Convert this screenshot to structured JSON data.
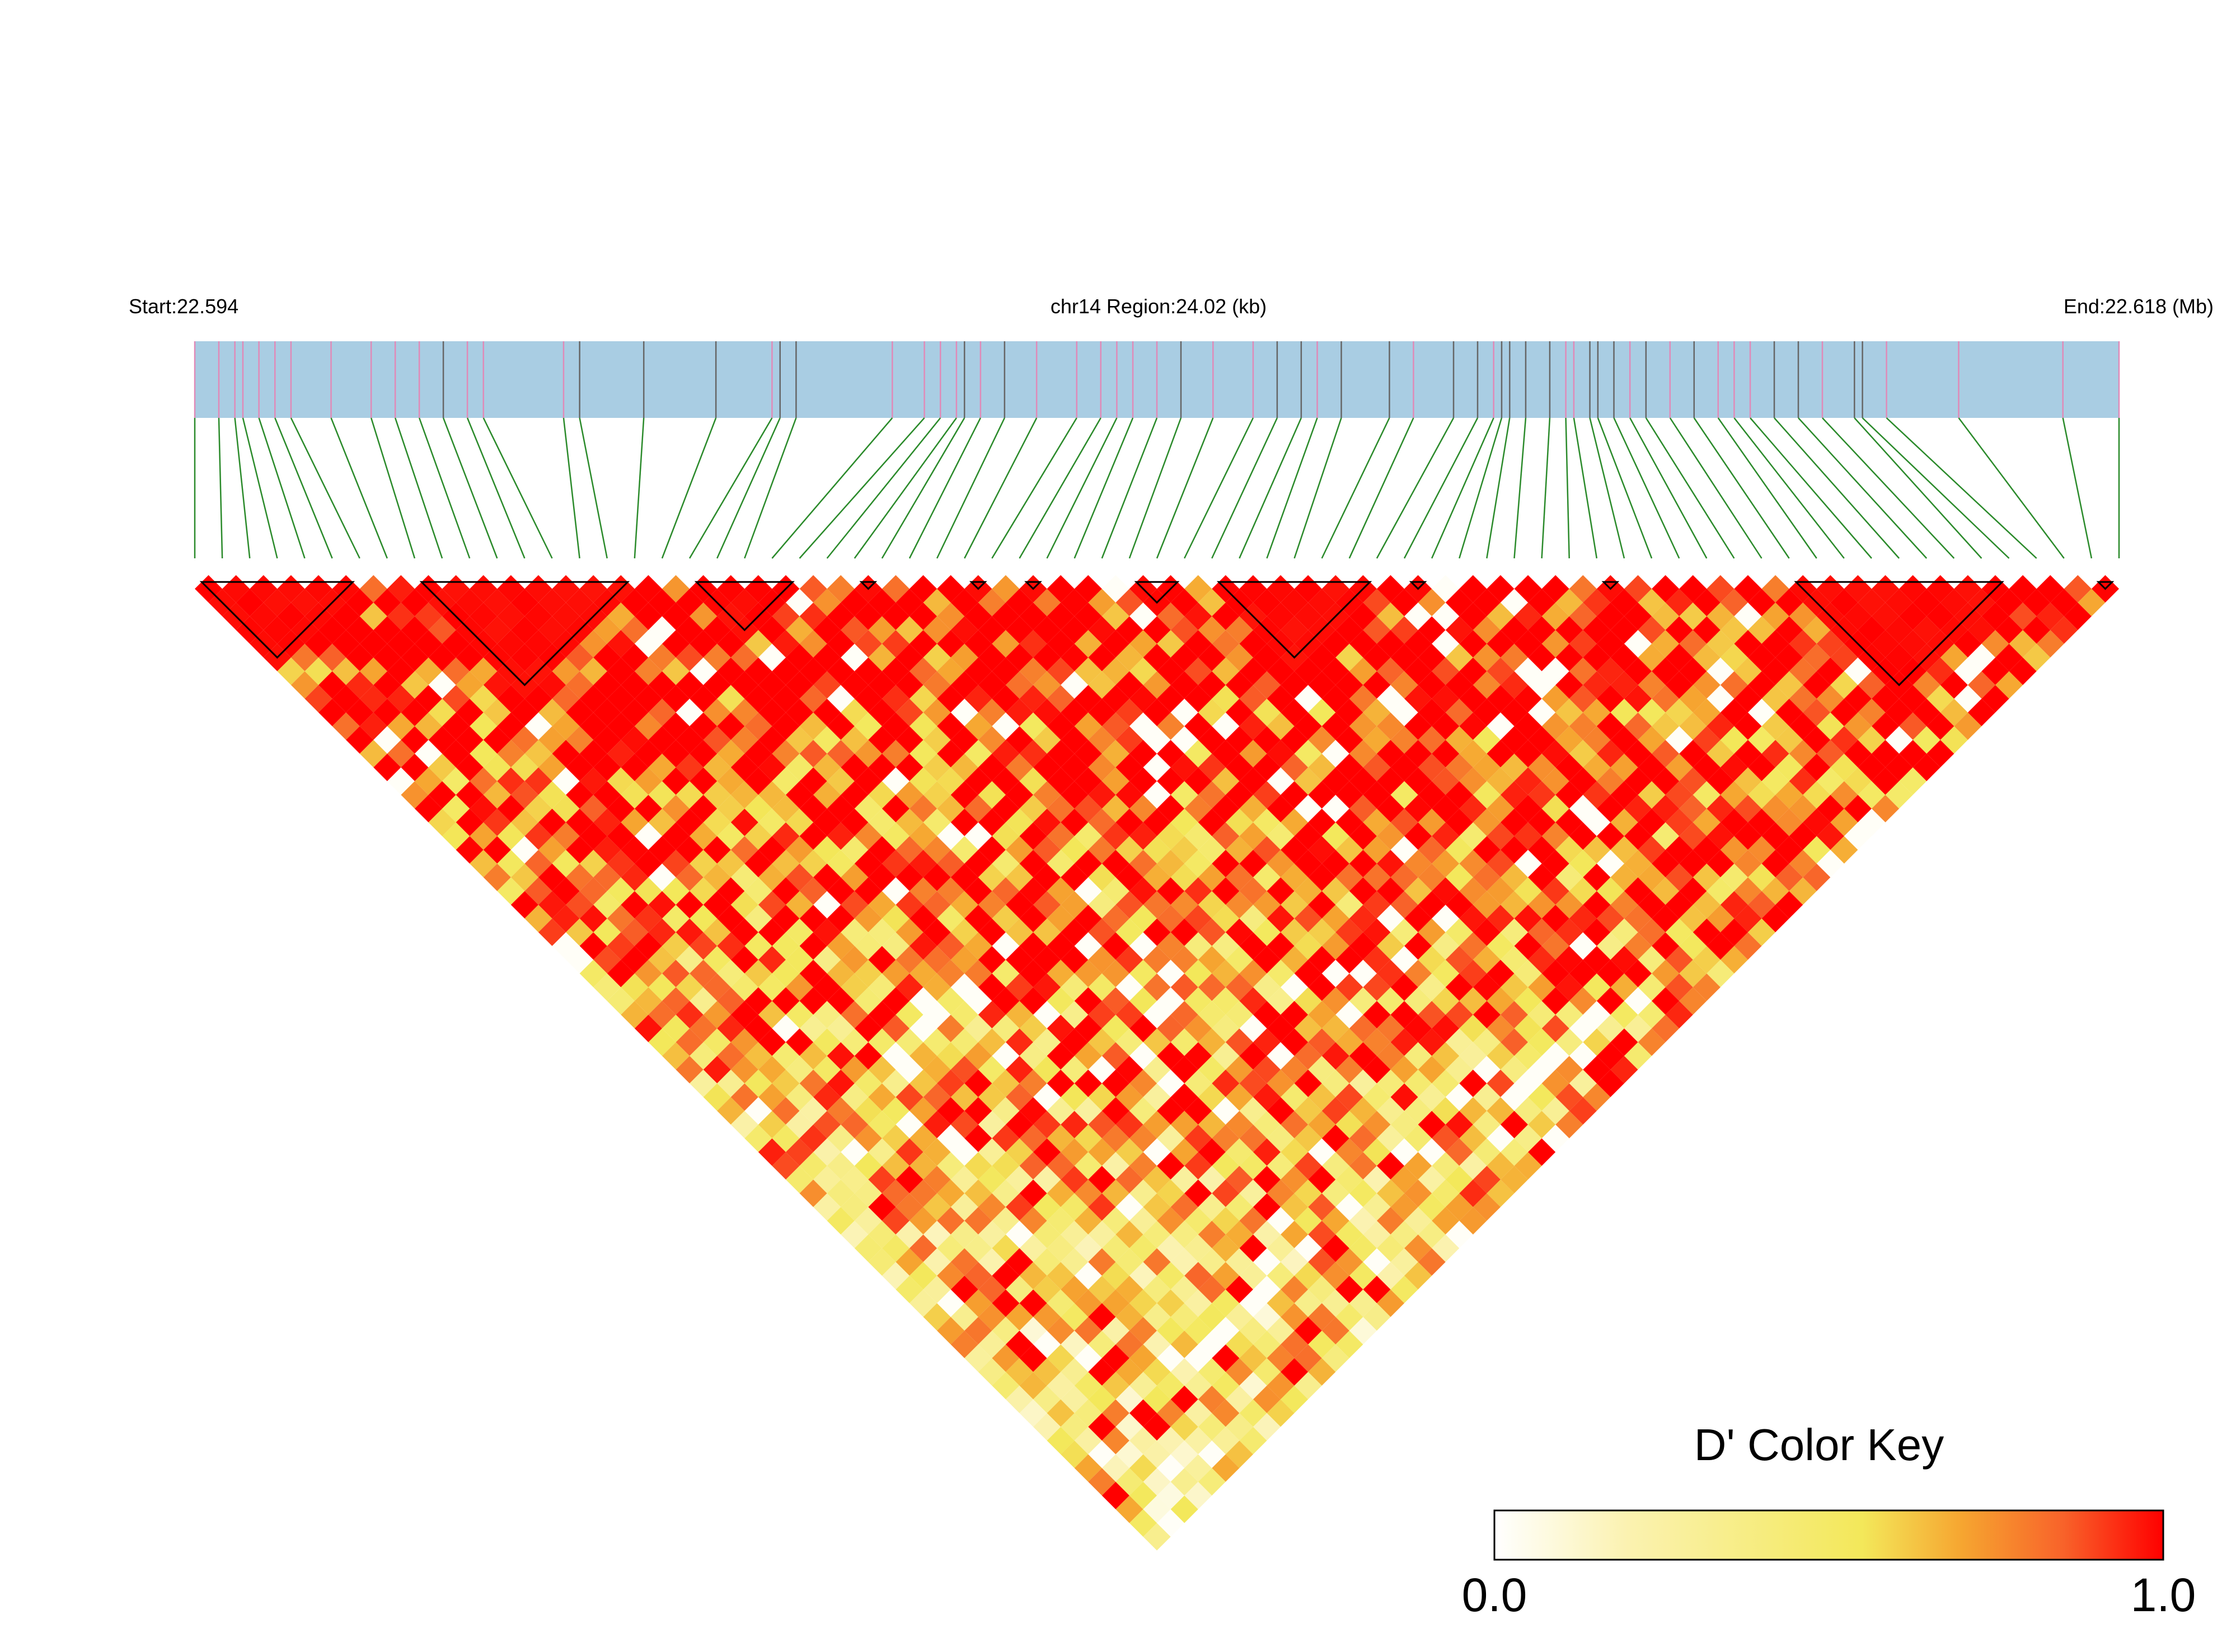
{
  "figure": {
    "start_label": "Start:22.594",
    "region_label": "chr14 Region:24.02 (kb)",
    "end_label": "End:22.618 (Mb)"
  },
  "colors": {
    "region_bar": "#a9cde3",
    "snp_tick_pink": "#e08ab8",
    "snp_tick_gray": "#666666",
    "connector": "#2a8a2a",
    "block_outline": "#000000",
    "scale": [
      "#ffffff",
      "#fbf2b0",
      "#f3e85a",
      "#f6a530",
      "#f8632a",
      "#ff0000"
    ]
  },
  "legend": {
    "title": "D' Color Key",
    "min_label": "0.0",
    "max_label": "1.0"
  },
  "chart_data": {
    "type": "heatmap",
    "title": "",
    "chromosome": "chr14",
    "region_start_mb": 22.594,
    "region_end_mb": 22.618,
    "region_size_kb": 24.02,
    "metric": "D'",
    "value_range": [
      0.0,
      1.0
    ],
    "snp_count": 71,
    "snp_positions_mb": [
      22.594,
      22.5943,
      22.5945,
      22.5946,
      22.5948,
      22.595,
      22.5952,
      22.5957,
      22.5962,
      22.5965,
      22.5968,
      22.5971,
      22.5974,
      22.5976,
      22.5986,
      22.5988,
      22.5996,
      22.6005,
      22.6012,
      22.6013,
      22.6015,
      22.6027,
      22.6031,
      22.6033,
      22.6035,
      22.6036,
      22.6038,
      22.6041,
      22.6045,
      22.605,
      22.6053,
      22.6055,
      22.6057,
      22.606,
      22.6063,
      22.6067,
      22.6072,
      22.6075,
      22.6078,
      22.608,
      22.6083,
      22.6089,
      22.6092,
      22.6097,
      22.61,
      22.6102,
      22.6103,
      22.6104,
      22.6106,
      22.6109,
      22.6111,
      22.6112,
      22.6114,
      22.6115,
      22.6117,
      22.6119,
      22.6121,
      22.6124,
      22.6127,
      22.613,
      22.6132,
      22.6134,
      22.6137,
      22.614,
      22.6143,
      22.6147,
      22.6148,
      22.6151,
      22.616,
      22.6173,
      22.618
    ],
    "snp_tick_style": [
      "pink",
      "pink",
      "pink",
      "pink",
      "pink",
      "pink",
      "pink",
      "pink",
      "pink",
      "pink",
      "pink",
      "gray",
      "pink",
      "pink",
      "pink",
      "gray",
      "gray",
      "gray",
      "pink",
      "gray",
      "gray",
      "pink",
      "pink",
      "pink",
      "pink",
      "gray",
      "pink",
      "gray",
      "pink",
      "pink",
      "pink",
      "pink",
      "pink",
      "pink",
      "gray",
      "pink",
      "pink",
      "gray",
      "gray",
      "pink",
      "gray",
      "gray",
      "pink",
      "gray",
      "gray",
      "pink",
      "gray",
      "gray",
      "gray",
      "gray",
      "pink",
      "pink",
      "gray",
      "gray",
      "gray",
      "pink",
      "gray",
      "pink",
      "gray",
      "pink",
      "pink",
      "pink",
      "gray",
      "gray",
      "pink",
      "gray",
      "gray",
      "pink",
      "pink",
      "pink",
      "pink"
    ],
    "haplotype_blocks": [
      [
        1,
        7
      ],
      [
        9,
        17
      ],
      [
        19,
        23
      ],
      [
        25,
        26
      ],
      [
        29,
        30
      ],
      [
        31,
        32
      ],
      [
        35,
        37
      ],
      [
        38,
        44
      ],
      [
        45,
        46
      ],
      [
        52,
        53
      ],
      [
        59,
        67
      ],
      [
        70,
        71
      ]
    ],
    "pair_dprime_hint": "Pairwise D' values between all SNP pairs; high (near 1.0) along the diagonal and in blocks, decreasing with distance."
  }
}
